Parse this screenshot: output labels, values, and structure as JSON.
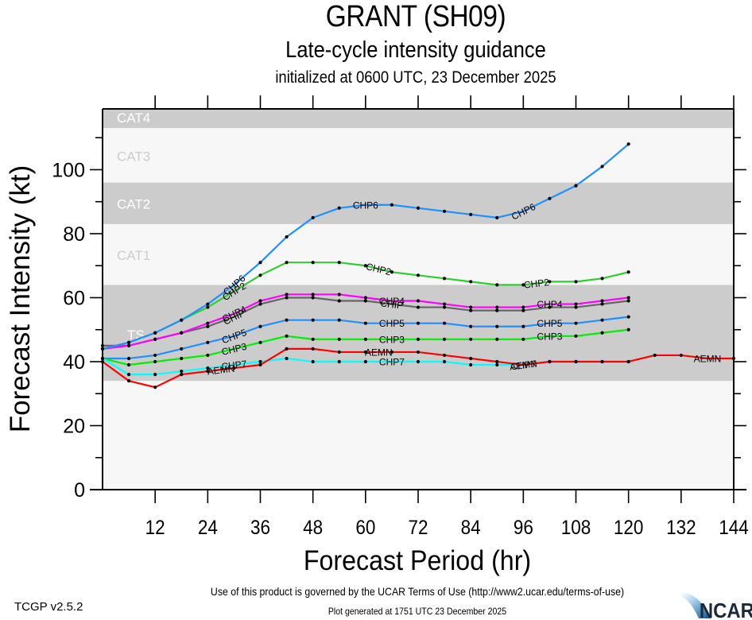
{
  "header": {
    "title": "GRANT (SH09)",
    "subtitle": "Late-cycle intensity guidance",
    "init": "initialized at 0600 UTC, 23 December 2025"
  },
  "footer": {
    "terms": "Use of this product is governed by the UCAR Terms of Use (http://www2.ucar.edu/terms-of-use)",
    "version": "TCGP v2.5.2",
    "generated": "Plot generated at 1751 UTC   23 December 2025",
    "logo_text": "NCAR"
  },
  "chart_data": {
    "type": "line",
    "title": "GRANT (SH09) Late-cycle intensity guidance",
    "xlabel": "Forecast Period (hr)",
    "ylabel": "Forecast Intensity (kt)",
    "xlim": [
      0,
      144
    ],
    "ylim": [
      0,
      119
    ],
    "xticks": [
      12,
      24,
      36,
      48,
      60,
      72,
      84,
      96,
      108,
      120,
      132,
      144
    ],
    "yticks": [
      0,
      20,
      40,
      60,
      80,
      100
    ],
    "yminor_step": 10,
    "grid": false,
    "legend": "inline labels on lines",
    "bands": [
      {
        "label": "TS",
        "min": 34,
        "max": 64,
        "fill": "#cccccc",
        "text_color": "#ffffff"
      },
      {
        "label": "CAT1",
        "min": 64,
        "max": 83,
        "fill": "#f7f7f7",
        "text_color": "#cccccc"
      },
      {
        "label": "CAT2",
        "min": 83,
        "max": 96,
        "fill": "#cccccc",
        "text_color": "#ffffff"
      },
      {
        "label": "CAT3",
        "min": 96,
        "max": 113,
        "fill": "#f7f7f7",
        "text_color": "#cccccc"
      },
      {
        "label": "CAT4",
        "min": 113,
        "max": 119,
        "fill": "#cccccc",
        "text_color": "#ffffff"
      }
    ],
    "below_band_fill": "#f7f7f7",
    "x": [
      0,
      6,
      12,
      18,
      24,
      30,
      36,
      42,
      48,
      54,
      60,
      66,
      72,
      78,
      84,
      90,
      96,
      102,
      108,
      114,
      120,
      126,
      132,
      138,
      144
    ],
    "series": [
      {
        "name": "CHIP",
        "color": "#666666",
        "values": [
          45,
          45,
          47,
          49,
          51,
          54,
          58,
          60,
          60,
          59,
          59,
          58,
          57,
          57,
          56,
          56,
          56,
          57,
          57,
          58,
          59
        ],
        "label_at": [
          30,
          66
        ]
      },
      {
        "name": "CHP4",
        "color": "#ff00ff",
        "values": [
          44,
          45,
          47,
          49,
          52,
          55,
          59,
          61,
          61,
          61,
          60,
          59,
          59,
          58,
          57,
          57,
          57,
          58,
          58,
          59,
          60
        ],
        "label_at": [
          30,
          66,
          102
        ]
      },
      {
        "name": "CHP2",
        "color": "#33cc33",
        "values": [
          44,
          46,
          49,
          53,
          57,
          62,
          67,
          71,
          71,
          71,
          70,
          68,
          67,
          66,
          65,
          64,
          64,
          65,
          65,
          66,
          68
        ],
        "label_at": [
          30,
          63,
          99
        ]
      },
      {
        "name": "CHP6",
        "color": "#1e90ff",
        "values": [
          44,
          46,
          49,
          53,
          58,
          64,
          71,
          79,
          85,
          88,
          89,
          89,
          88,
          87,
          86,
          85,
          87,
          91,
          95,
          101,
          108
        ],
        "label_at": [
          30,
          60,
          96
        ]
      },
      {
        "name": "CHP5",
        "color": "#1e90ff",
        "values": [
          41,
          41,
          42,
          44,
          46,
          48,
          51,
          53,
          53,
          53,
          52,
          52,
          52,
          52,
          51,
          51,
          51,
          52,
          52,
          53,
          54
        ],
        "label_at": [
          30,
          66,
          102
        ]
      },
      {
        "name": "CHP3",
        "color": "#00ee00",
        "values": [
          41,
          39,
          40,
          41,
          42,
          44,
          46,
          48,
          47,
          47,
          47,
          47,
          47,
          47,
          47,
          47,
          47,
          48,
          48,
          49,
          50
        ],
        "label_at": [
          30,
          66,
          102
        ]
      },
      {
        "name": "CHP7",
        "color": "#00ffff",
        "values": [
          41,
          36,
          36,
          37,
          38,
          39,
          40,
          41,
          40,
          40,
          40,
          40,
          40,
          40,
          39,
          39,
          39,
          40,
          40,
          40,
          40
        ],
        "label_at": [
          30,
          66,
          96
        ]
      },
      {
        "name": "AEMN",
        "color": "#ff0000",
        "values": [
          40,
          34,
          32,
          36,
          37,
          38,
          39,
          44,
          44,
          43,
          43,
          43,
          43,
          42,
          41,
          40,
          39,
          40,
          40,
          40,
          40,
          42,
          42,
          41,
          41
        ],
        "label_at": [
          27,
          63,
          96,
          138
        ]
      }
    ]
  }
}
